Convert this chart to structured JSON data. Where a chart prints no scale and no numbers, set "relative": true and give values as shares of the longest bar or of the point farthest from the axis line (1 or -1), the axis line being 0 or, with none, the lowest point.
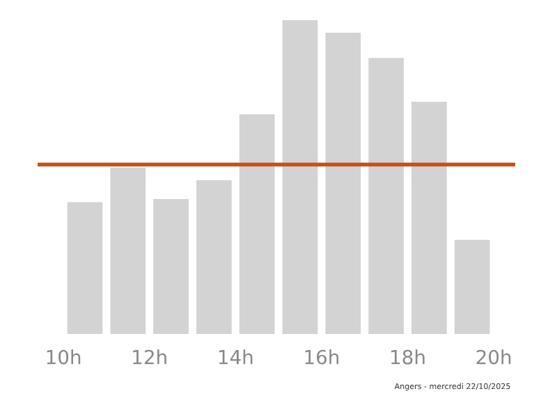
{
  "chart_data": {
    "type": "bar",
    "relative": true,
    "x": [
      10.5,
      11.5,
      12.5,
      13.5,
      14.5,
      15.5,
      16.5,
      17.5,
      18.5,
      19.5
    ],
    "values": [
      0.42,
      0.53,
      0.43,
      0.49,
      0.7,
      1,
      0.96,
      0.88,
      0.74,
      0.3
    ],
    "color": "#d3d3d4",
    "xlim": [
      9.4,
      20.5
    ],
    "xticks": [
      {
        "value": 10,
        "label": "10h"
      },
      {
        "value": 12,
        "label": "12h"
      },
      {
        "value": 14,
        "label": "14h"
      },
      {
        "value": 16,
        "label": "16h"
      },
      {
        "value": 18,
        "label": "18h"
      },
      {
        "value": 20,
        "label": "20h"
      }
    ],
    "ref_lines": [
      {
        "axis": "y",
        "value": 0.54,
        "color": "#c8501e"
      }
    ],
    "annotations": [
      "Angers - mercredi 22/10/2025"
    ],
    "grid": false
  }
}
